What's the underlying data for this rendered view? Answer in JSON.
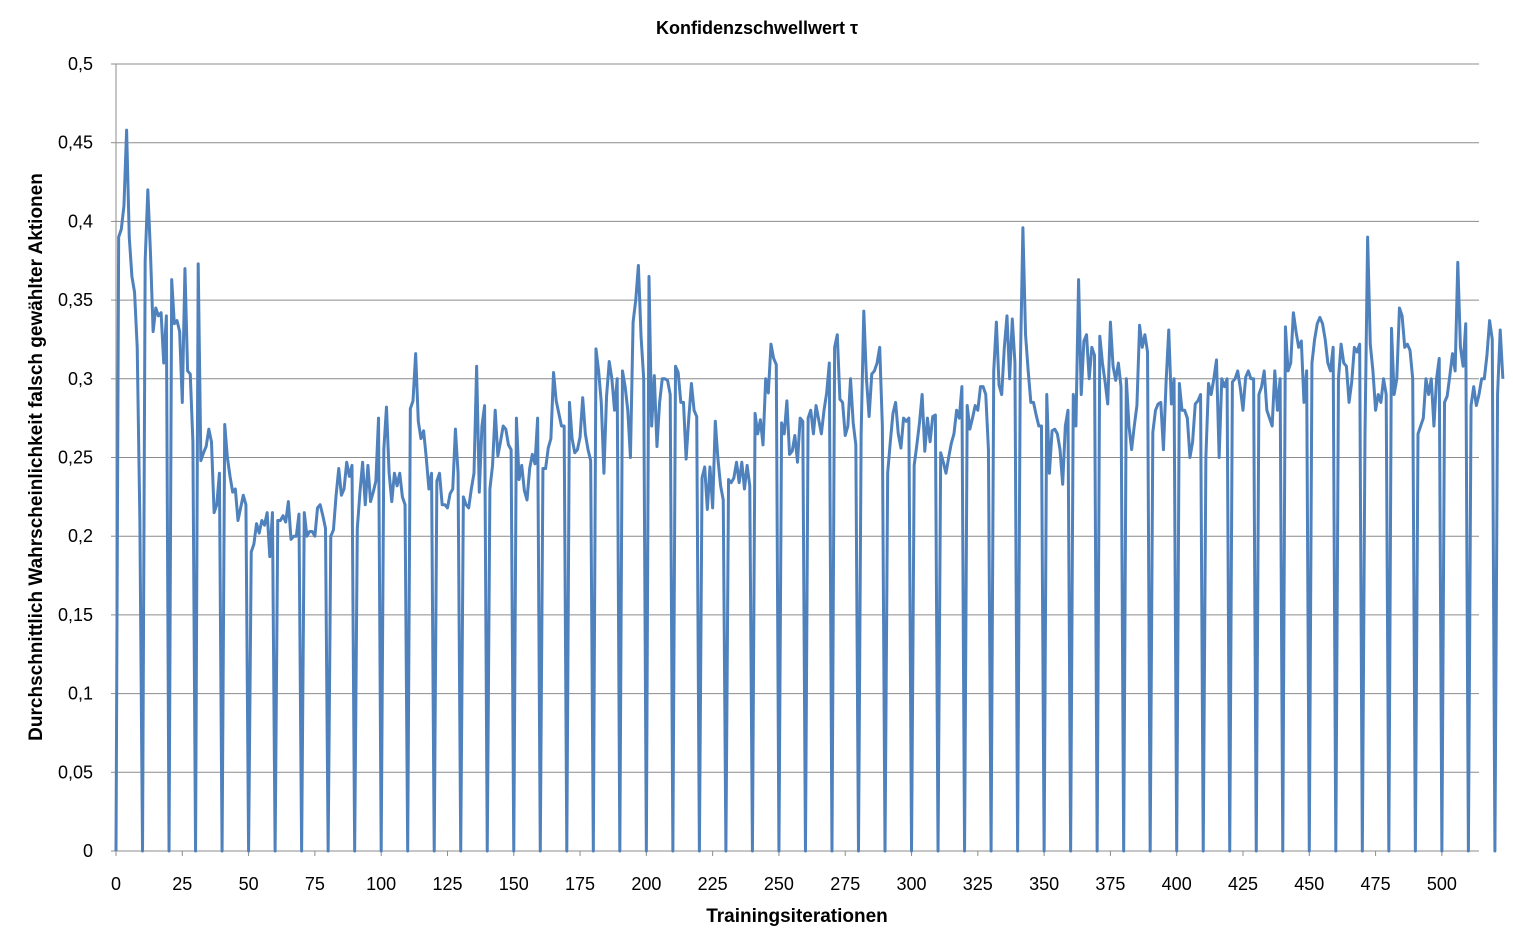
{
  "colors": {
    "series": "#4f81bd",
    "grid": "#8c8c8c"
  },
  "chart_data": {
    "type": "line",
    "title": "Konfidenzschwellwert τ",
    "xlabel": "Trainingsiterationen",
    "ylabel": "Durchschnittlich Wahrscheinlichkeit falsch gewählter Aktionen",
    "xlim": [
      0,
      514
    ],
    "ylim": [
      0,
      0.5
    ],
    "x_ticks": [
      0,
      25,
      50,
      75,
      100,
      125,
      150,
      175,
      200,
      225,
      250,
      275,
      300,
      325,
      350,
      375,
      400,
      425,
      450,
      475,
      500
    ],
    "x_tick_labels": [
      "0",
      "25",
      "50",
      "75",
      "100",
      "125",
      "150",
      "175",
      "200",
      "225",
      "250",
      "275",
      "300",
      "325",
      "350",
      "375",
      "400",
      "425",
      "450",
      "475",
      "500"
    ],
    "y_ticks": [
      0,
      0.05,
      0.1,
      0.15,
      0.2,
      0.25,
      0.3,
      0.35,
      0.4,
      0.45,
      0.5
    ],
    "y_tick_labels": [
      "0",
      "0,05",
      "0,1",
      "0,15",
      "0,2",
      "0,25",
      "0,3",
      "0,35",
      "0,4",
      "0,45",
      "0,5"
    ],
    "grid": "horizontal",
    "legend": "none",
    "series": [
      {
        "values": [
          0,
          0.39,
          0.395,
          0.41,
          0.458,
          0.39,
          0.365,
          0.355,
          0.32,
          0.21,
          0,
          0.375,
          0.42,
          0.38,
          0.33,
          0.345,
          0.34,
          0.342,
          0.31,
          0.34,
          0,
          0.363,
          0.335,
          0.337,
          0.33,
          0.285,
          0.37,
          0.305,
          0.303,
          0.26,
          0,
          0.373,
          0.248,
          0.253,
          0.257,
          0.268,
          0.26,
          0.215,
          0.22,
          0.24,
          0,
          0.271,
          0.25,
          0.238,
          0.228,
          0.23,
          0.21,
          0.218,
          0.226,
          0.22,
          0,
          0.19,
          0.195,
          0.208,
          0.202,
          0.21,
          0.207,
          0.215,
          0.187,
          0.215,
          0,
          0.21,
          0.21,
          0.213,
          0.209,
          0.222,
          0.198,
          0.2,
          0.2,
          0.214,
          0,
          0.215,
          0.2,
          0.203,
          0.203,
          0.2,
          0.218,
          0.22,
          0.213,
          0.205,
          0,
          0.2,
          0.204,
          0.226,
          0.243,
          0.226,
          0.23,
          0.247,
          0.238,
          0.245,
          0,
          0.205,
          0.228,
          0.247,
          0.22,
          0.245,
          0.222,
          0.228,
          0.235,
          0.275,
          0,
          0.255,
          0.282,
          0.24,
          0.222,
          0.24,
          0.232,
          0.24,
          0.225,
          0.22,
          0,
          0.281,
          0.286,
          0.316,
          0.273,
          0.262,
          0.267,
          0.25,
          0.23,
          0.24,
          0,
          0.235,
          0.24,
          0.22,
          0.22,
          0.218,
          0.227,
          0.23,
          0.268,
          0.24,
          0,
          0.225,
          0.22,
          0.218,
          0.23,
          0.24,
          0.308,
          0.228,
          0.27,
          0.283,
          0,
          0.23,
          0.245,
          0.28,
          0.251,
          0.26,
          0.27,
          0.268,
          0.258,
          0.255,
          0,
          0.275,
          0.236,
          0.245,
          0.229,
          0.223,
          0.243,
          0.252,
          0.246,
          0.275,
          0,
          0.243,
          0.243,
          0.256,
          0.262,
          0.304,
          0.286,
          0.278,
          0.27,
          0.27,
          0,
          0.285,
          0.262,
          0.253,
          0.255,
          0.263,
          0.288,
          0.265,
          0.255,
          0.248,
          0,
          0.319,
          0.305,
          0.285,
          0.24,
          0.289,
          0.311,
          0.3,
          0.28,
          0.3,
          0,
          0.305,
          0.295,
          0.28,
          0.25,
          0.336,
          0.35,
          0.372,
          0.327,
          0.3,
          0,
          0.365,
          0.27,
          0.302,
          0.257,
          0.285,
          0.3,
          0.3,
          0.299,
          0.29,
          0,
          0.308,
          0.304,
          0.285,
          0.285,
          0.249,
          0.275,
          0.297,
          0.28,
          0.276,
          0,
          0.237,
          0.244,
          0.217,
          0.244,
          0.218,
          0.273,
          0.249,
          0.232,
          0.223,
          0,
          0.236,
          0.234,
          0.237,
          0.247,
          0.234,
          0.247,
          0.23,
          0.245,
          0.232,
          0,
          0.278,
          0.265,
          0.274,
          0.258,
          0.3,
          0.291,
          0.322,
          0.313,
          0.309,
          0,
          0.272,
          0.265,
          0.286,
          0.252,
          0.254,
          0.264,
          0.247,
          0.275,
          0.273,
          0,
          0.275,
          0.28,
          0.265,
          0.283,
          0.274,
          0.265,
          0.28,
          0.291,
          0.31,
          0,
          0.32,
          0.328,
          0.287,
          0.285,
          0.264,
          0.27,
          0.3,
          0.272,
          0.258,
          0,
          0.265,
          0.343,
          0.3,
          0.276,
          0.303,
          0.305,
          0.31,
          0.32,
          0.27,
          0,
          0.24,
          0.26,
          0.278,
          0.285,
          0.265,
          0.256,
          0.275,
          0.273,
          0.275,
          0,
          0.245,
          0.258,
          0.272,
          0.29,
          0.254,
          0.275,
          0.26,
          0.276,
          0.277,
          0,
          0.253,
          0.247,
          0.24,
          0.25,
          0.259,
          0.265,
          0.28,
          0.275,
          0.295,
          0,
          0.283,
          0.268,
          0.275,
          0.283,
          0.28,
          0.295,
          0.295,
          0.29,
          0.255,
          0,
          0.305,
          0.336,
          0.296,
          0.29,
          0.32,
          0.34,
          0.3,
          0.338,
          0.31,
          0,
          0.305,
          0.396,
          0.328,
          0.305,
          0.285,
          0.285,
          0.277,
          0.27,
          0.27,
          0,
          0.29,
          0.24,
          0.267,
          0.268,
          0.265,
          0.255,
          0.233,
          0.27,
          0.28,
          0,
          0.29,
          0.27,
          0.363,
          0.29,
          0.324,
          0.328,
          0.3,
          0.32,
          0.315,
          0,
          0.327,
          0.31,
          0.298,
          0.284,
          0.336,
          0.308,
          0.299,
          0.31,
          0.295,
          0,
          0.3,
          0.27,
          0.255,
          0.27,
          0.283,
          0.334,
          0.32,
          0.328,
          0.317,
          0,
          0.266,
          0.28,
          0.284,
          0.285,
          0.255,
          0.298,
          0.331,
          0.284,
          0.3,
          0,
          0.297,
          0.28,
          0.28,
          0.275,
          0.25,
          0.26,
          0.284,
          0.286,
          0.29,
          0,
          0.25,
          0.297,
          0.29,
          0.3,
          0.312,
          0.25,
          0.3,
          0.295,
          0.3,
          0,
          0.298,
          0.3,
          0.305,
          0.294,
          0.28,
          0.301,
          0.305,
          0.3,
          0.3,
          0,
          0.29,
          0.295,
          0.305,
          0.28,
          0.275,
          0.27,
          0.305,
          0.28,
          0.3,
          0,
          0.333,
          0.305,
          0.31,
          0.342,
          0.33,
          0.32,
          0.324,
          0.285,
          0.305,
          0,
          0.31,
          0.325,
          0.335,
          0.339,
          0.335,
          0.325,
          0.31,
          0.305,
          0.32,
          0,
          0.3,
          0.322,
          0.31,
          0.308,
          0.285,
          0.298,
          0.32,
          0.317,
          0.322,
          0,
          0.263,
          0.39,
          0.322,
          0.305,
          0.28,
          0.29,
          0.285,
          0.3,
          0.29,
          0,
          0.332,
          0.29,
          0.3,
          0.345,
          0.34,
          0.32,
          0.322,
          0.318,
          0.3,
          0,
          0.265,
          0.27,
          0.275,
          0.3,
          0.29,
          0.3,
          0.27,
          0.3,
          0.313,
          0,
          0.285,
          0.289,
          0.302,
          0.316,
          0.305,
          0.374,
          0.32,
          0.308,
          0.335,
          0,
          0.283,
          0.295,
          0.283,
          0.29,
          0.3,
          0.3,
          0.315,
          0.337,
          0.325,
          0,
          0.29,
          0.331,
          0.3
        ]
      }
    ]
  }
}
